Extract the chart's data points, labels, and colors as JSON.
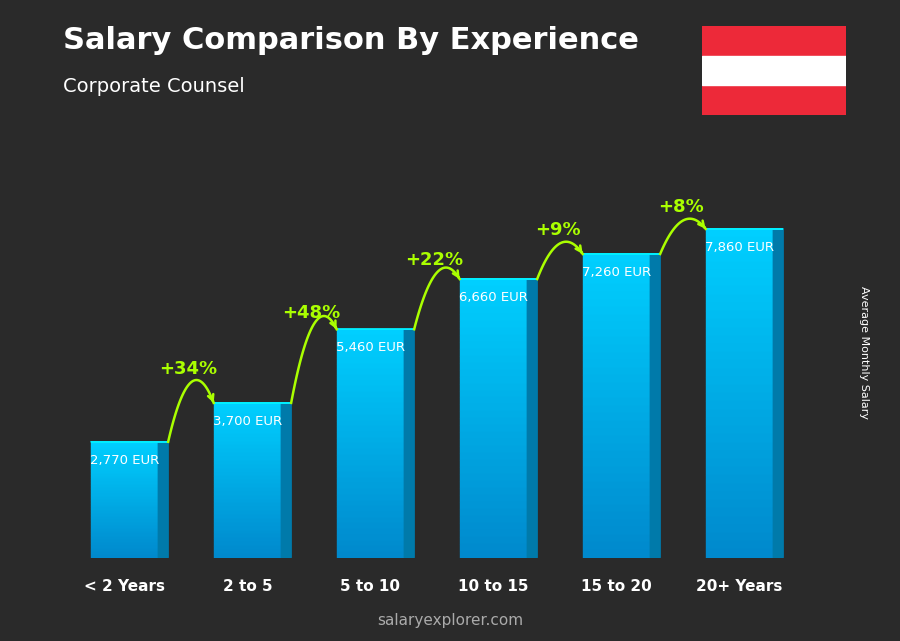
{
  "title": "Salary Comparison By Experience",
  "subtitle": "Corporate Counsel",
  "categories": [
    "< 2 Years",
    "2 to 5",
    "5 to 10",
    "10 to 15",
    "15 to 20",
    "20+ Years"
  ],
  "values": [
    2770,
    3700,
    5460,
    6660,
    7260,
    7860
  ],
  "labels": [
    "2,770 EUR",
    "3,700 EUR",
    "5,460 EUR",
    "6,660 EUR",
    "7,260 EUR",
    "7,860 EUR"
  ],
  "pct_changes": [
    "+34%",
    "+48%",
    "+22%",
    "+9%",
    "+8%"
  ],
  "bar_color_top": "#00cfff",
  "bar_color_mid": "#00aadd",
  "bar_color_side": "#007aaa",
  "bar_color_bottom": "#005580",
  "bg_color": "#2a2a2a",
  "title_color": "#ffffff",
  "subtitle_color": "#ffffff",
  "label_color": "#ffffff",
  "pct_color": "#aaff00",
  "ylabel_text": "Average Monthly Salary",
  "footer_text": "salaryexplorer.com",
  "footer_bold": "salary",
  "ylim": [
    0,
    9500
  ],
  "figsize": [
    9.0,
    6.41
  ],
  "dpi": 100
}
